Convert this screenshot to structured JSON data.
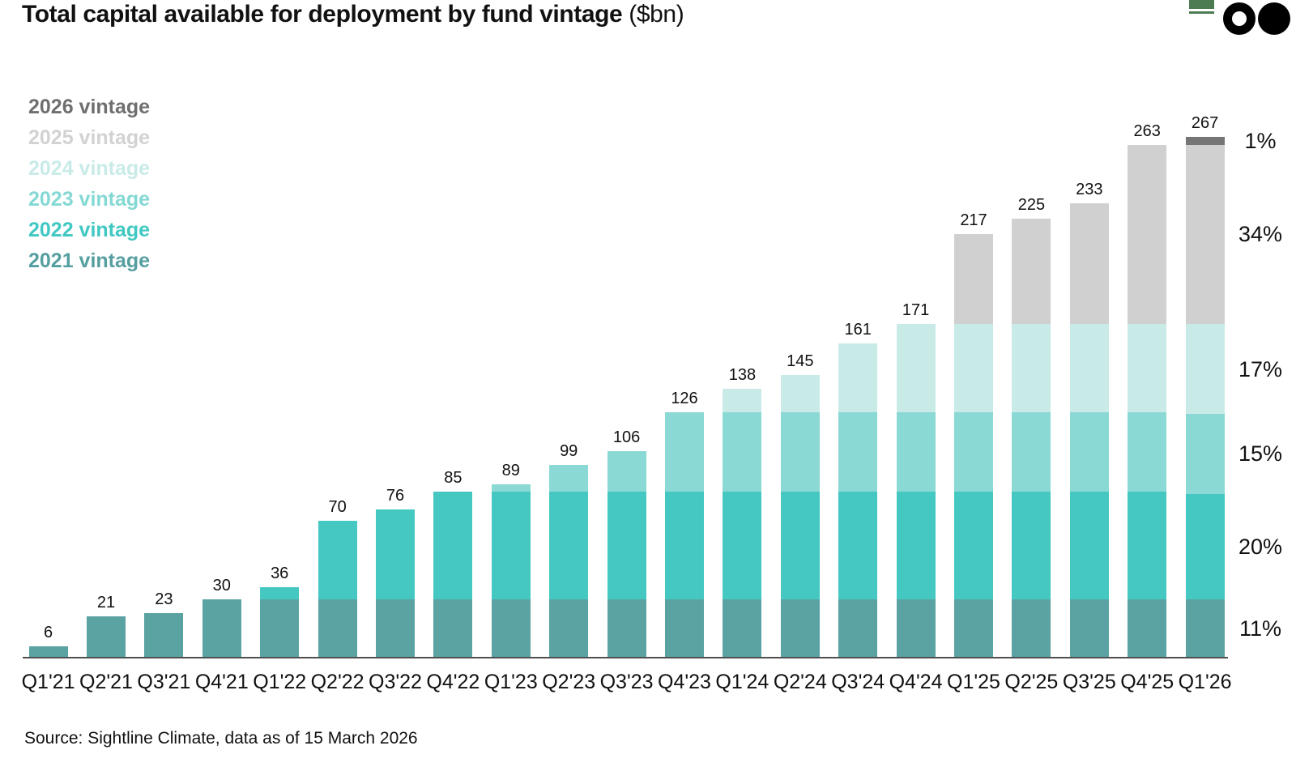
{
  "header": {
    "title": "Total capital available for deployment by fund vintage",
    "title_suffix": "($bn)",
    "logo": {
      "square_color": "#4d7c53",
      "ring_color": "#000000",
      "dot_color": "#000000"
    }
  },
  "legend": {
    "items": [
      {
        "label": "2026 vintage",
        "color": "#6f6f6f"
      },
      {
        "label": "2025 vintage",
        "color": "#d2d2d2"
      },
      {
        "label": "2024 vintage",
        "color": "#c9ebe8"
      },
      {
        "label": "2023 vintage",
        "color": "#84d9d4"
      },
      {
        "label": "2022 vintage",
        "color": "#41c8c2"
      },
      {
        "label": "2021 vintage",
        "color": "#569fa0"
      }
    ]
  },
  "chart_data": {
    "type": "bar",
    "stacked": true,
    "title": "Total capital available for deployment by fund vintage ($bn)",
    "xlabel": "",
    "ylabel": "",
    "grid": false,
    "legend_position": "top-left",
    "categories": [
      "Q1'21",
      "Q2'21",
      "Q3'21",
      "Q4'21",
      "Q1'22",
      "Q2'22",
      "Q3'22",
      "Q4'22",
      "Q1'23",
      "Q2'23",
      "Q3'23",
      "Q4'23",
      "Q1'24",
      "Q2'24",
      "Q3'24",
      "Q4'24",
      "Q1'25",
      "Q2'25",
      "Q3'25",
      "Q4'25",
      "Q1'26"
    ],
    "series": [
      {
        "name": "2021 vintage",
        "color": "#5ba3a2",
        "values": [
          6,
          21,
          23,
          30,
          30,
          30,
          30,
          30,
          30,
          30,
          30,
          30,
          30,
          30,
          30,
          30,
          30,
          30,
          30,
          30,
          30
        ]
      },
      {
        "name": "2022 vintage",
        "color": "#45c8c2",
        "values": [
          0,
          0,
          0,
          0,
          6,
          40,
          46,
          55,
          55,
          55,
          55,
          55,
          55,
          55,
          55,
          55,
          55,
          55,
          55,
          55,
          54
        ]
      },
      {
        "name": "2023 vintage",
        "color": "#8bd9d4",
        "values": [
          0,
          0,
          0,
          0,
          0,
          0,
          0,
          0,
          4,
          14,
          21,
          41,
          41,
          41,
          41,
          41,
          41,
          41,
          41,
          41,
          41
        ]
      },
      {
        "name": "2024 vintage",
        "color": "#c9ebe8",
        "values": [
          0,
          0,
          0,
          0,
          0,
          0,
          0,
          0,
          0,
          0,
          0,
          0,
          12,
          19,
          35,
          45,
          45,
          45,
          45,
          45,
          46
        ]
      },
      {
        "name": "2025 vintage",
        "color": "#d0d0d0",
        "values": [
          0,
          0,
          0,
          0,
          0,
          0,
          0,
          0,
          0,
          0,
          0,
          0,
          0,
          0,
          0,
          0,
          46,
          54,
          62,
          92,
          92
        ]
      },
      {
        "name": "2026 vintage",
        "color": "#757575",
        "values": [
          0,
          0,
          0,
          0,
          0,
          0,
          0,
          0,
          0,
          0,
          0,
          0,
          0,
          0,
          0,
          0,
          0,
          0,
          0,
          0,
          4
        ]
      }
    ],
    "totals": [
      6,
      21,
      23,
      30,
      36,
      70,
      76,
      85,
      89,
      99,
      106,
      126,
      138,
      145,
      161,
      171,
      217,
      225,
      233,
      263,
      267
    ],
    "right_percent_labels": [
      {
        "text": "1%",
        "series_index": 5
      },
      {
        "text": "34%",
        "series_index": 4
      },
      {
        "text": "17%",
        "series_index": 3
      },
      {
        "text": "15%",
        "series_index": 2
      },
      {
        "text": "20%",
        "series_index": 1
      },
      {
        "text": "11%",
        "series_index": 0
      }
    ]
  },
  "footer": {
    "source": "Source: Sightline Climate, data as of 15 March 2026"
  }
}
